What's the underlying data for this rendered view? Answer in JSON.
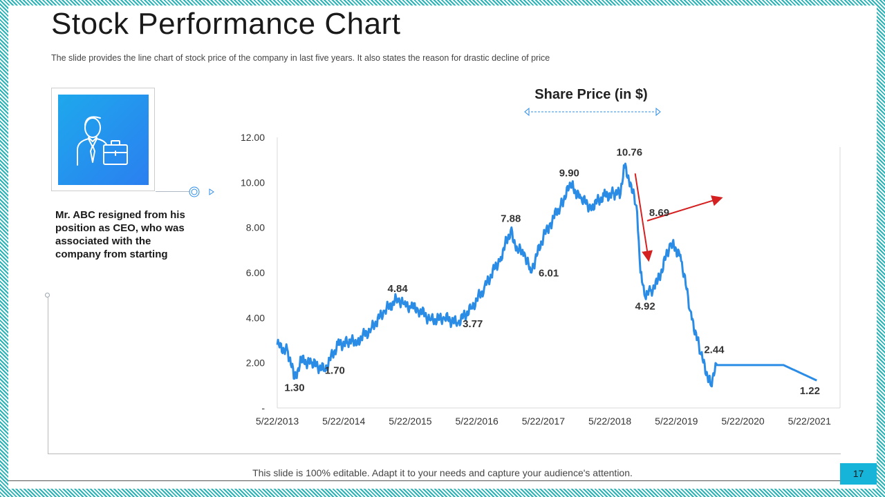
{
  "slide": {
    "title": "Stock Performance Chart",
    "subtitle": "The slide provides the line chart of stock price of the company in last five years.  It also states the reason for drastic decline of price",
    "description": "Mr. ABC resigned from his position as CEO, who was associated with the company from starting",
    "card_icon": "businessman-with-briefcase-icon",
    "footer_text": "This slide is 100% editable. Adapt it to your needs and capture your audience's attention.",
    "page_number": "17"
  },
  "colors": {
    "line": "#2b8ce6",
    "annotation_arrow": "#d42020",
    "accent": "#16b4d8",
    "border": "#2ab3b6"
  },
  "chart_data": {
    "type": "line",
    "title": "Share Price (in $)",
    "xlabel": "",
    "ylabel": "",
    "ylim": [
      0,
      12
    ],
    "y_ticks": [
      "-",
      "2.00",
      "4.00",
      "6.00",
      "8.00",
      "10.00",
      "12.00"
    ],
    "y_tick_values": [
      0,
      2,
      4,
      6,
      8,
      10,
      12
    ],
    "x_ticks": [
      "5/22/2013",
      "5/22/2014",
      "5/22/2015",
      "5/22/2016",
      "5/22/2017",
      "5/22/2018",
      "5/22/2019",
      "5/22/2020",
      "5/22/2021"
    ],
    "x_tick_values": [
      2013.39,
      2014.39,
      2015.39,
      2016.39,
      2017.39,
      2018.39,
      2019.39,
      2020.39,
      2021.39
    ],
    "series": [
      {
        "name": "Share Price",
        "x": [
          2013.39,
          2013.55,
          2013.65,
          2013.75,
          2013.9,
          2014.1,
          2014.3,
          2014.45,
          2014.6,
          2014.8,
          2015.0,
          2015.2,
          2015.3,
          2015.39,
          2015.5,
          2015.7,
          2015.9,
          2016.1,
          2016.3,
          2016.5,
          2016.75,
          2016.9,
          2017.0,
          2017.1,
          2017.2,
          2017.39,
          2017.5,
          2017.65,
          2017.8,
          2017.95,
          2018.1,
          2018.3,
          2018.45,
          2018.55,
          2018.6,
          2018.7,
          2018.8,
          2018.85,
          2018.92,
          2019.0,
          2019.1,
          2019.3,
          2019.45,
          2019.6,
          2019.75,
          2019.9,
          2020.0,
          2020.39,
          2021.0,
          2021.5
        ],
        "y": [
          2.8,
          2.5,
          1.3,
          2.1,
          2.0,
          1.7,
          2.8,
          2.9,
          3.0,
          3.5,
          4.3,
          4.84,
          4.6,
          4.5,
          4.4,
          3.9,
          4.0,
          3.77,
          4.4,
          5.3,
          6.7,
          7.88,
          7.0,
          6.9,
          6.01,
          7.6,
          8.2,
          9.0,
          9.9,
          9.3,
          8.9,
          9.4,
          9.5,
          9.5,
          10.76,
          10.0,
          8.69,
          6.0,
          4.92,
          5.2,
          5.5,
          7.3,
          6.8,
          4.3,
          2.44,
          1.05,
          1.9,
          1.9,
          1.9,
          1.22
        ]
      }
    ],
    "data_labels": [
      {
        "text": "1.30",
        "x": 2013.65,
        "y": 1.3
      },
      {
        "text": "1.70",
        "x": 2014.1,
        "y": 1.7
      },
      {
        "text": "4.84",
        "x": 2015.2,
        "y": 4.84
      },
      {
        "text": "3.77",
        "x": 2016.1,
        "y": 3.77
      },
      {
        "text": "7.88",
        "x": 2016.9,
        "y": 7.88
      },
      {
        "text": "6.01",
        "x": 2017.2,
        "y": 6.01
      },
      {
        "text": "9.90",
        "x": 2017.8,
        "y": 9.9
      },
      {
        "text": "10.76",
        "x": 2018.6,
        "y": 10.76
      },
      {
        "text": "8.69",
        "x": 2018.8,
        "y": 8.69
      },
      {
        "text": "4.92",
        "x": 2018.92,
        "y": 4.92
      },
      {
        "text": "2.44",
        "x": 2019.75,
        "y": 2.44
      },
      {
        "text": "1.22",
        "x": 2021.5,
        "y": 1.22
      }
    ],
    "annotations": [
      {
        "type": "arrow",
        "from": [
          2018.77,
          10.4
        ],
        "to": [
          2018.97,
          6.6
        ],
        "color": "#d42020"
      },
      {
        "type": "arrow",
        "from": [
          2018.95,
          8.3
        ],
        "to": [
          2020.05,
          9.3
        ],
        "color": "#d42020"
      }
    ]
  }
}
